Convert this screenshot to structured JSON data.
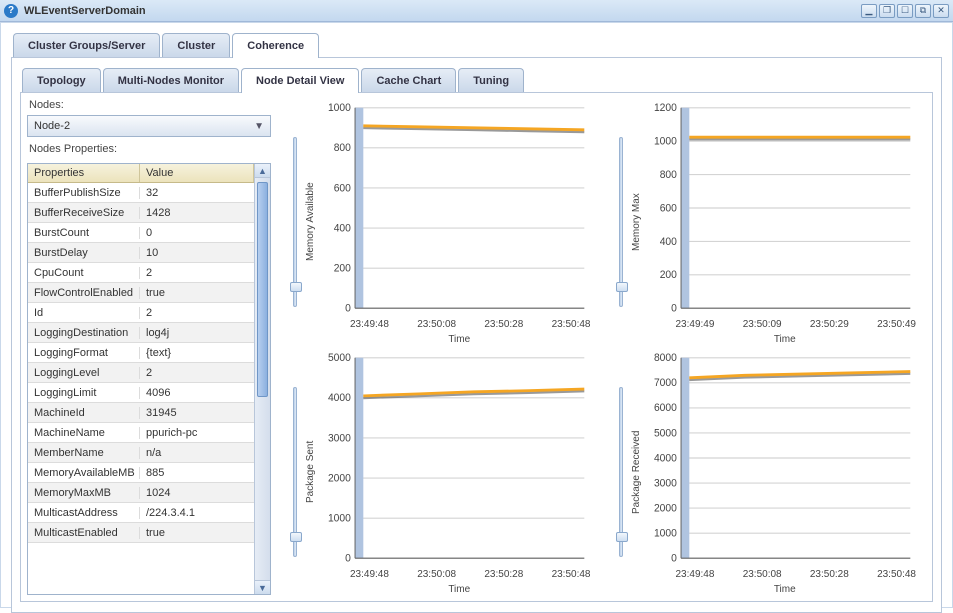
{
  "window": {
    "title": "WLEventServerDomain",
    "icon_bg": "#2b7ac8"
  },
  "tabs_primary": [
    {
      "label": "Cluster Groups/Server",
      "active": false
    },
    {
      "label": "Cluster",
      "active": false
    },
    {
      "label": "Coherence",
      "active": true
    }
  ],
  "tabs_secondary": [
    {
      "label": "Topology",
      "active": false
    },
    {
      "label": "Multi-Nodes Monitor",
      "active": false
    },
    {
      "label": "Node Detail View",
      "active": true
    },
    {
      "label": "Cache Chart",
      "active": false
    },
    {
      "label": "Tuning",
      "active": false
    }
  ],
  "left": {
    "nodes_label": "Nodes:",
    "selected_node": "Node-2",
    "properties_label": "Nodes Properties:",
    "table_headers": {
      "key": "Properties",
      "value": "Value"
    },
    "rows": [
      {
        "k": "BufferPublishSize",
        "v": "32"
      },
      {
        "k": "BufferReceiveSize",
        "v": "1428"
      },
      {
        "k": "BurstCount",
        "v": "0"
      },
      {
        "k": "BurstDelay",
        "v": "10"
      },
      {
        "k": "CpuCount",
        "v": "2"
      },
      {
        "k": "FlowControlEnabled",
        "v": "true"
      },
      {
        "k": "Id",
        "v": "2"
      },
      {
        "k": "LoggingDestination",
        "v": "log4j"
      },
      {
        "k": "LoggingFormat",
        "v": "{text}"
      },
      {
        "k": "LoggingLevel",
        "v": "2"
      },
      {
        "k": "LoggingLimit",
        "v": "4096"
      },
      {
        "k": "MachineId",
        "v": "31945"
      },
      {
        "k": "MachineName",
        "v": "ppurich-pc"
      },
      {
        "k": "MemberName",
        "v": "n/a"
      },
      {
        "k": "MemoryAvailableMB",
        "v": "885"
      },
      {
        "k": "MemoryMaxMB",
        "v": "1024"
      },
      {
        "k": "MulticastAddress",
        "v": "/224.3.4.1"
      },
      {
        "k": "MulticastEnabled",
        "v": "true"
      }
    ],
    "scrollbar": {
      "thumb_top_pct": 4,
      "thumb_height_pct": 50
    }
  },
  "charts": [
    {
      "ylabel": "Memory Available",
      "xlabel": "Time",
      "ymin": 0,
      "ymax": 1000,
      "ystep": 200,
      "xticks": [
        "23:49:48",
        "23:50:08",
        "23:50:28",
        "23:50:48"
      ],
      "series": [
        {
          "points": [
            [
              0,
              910
            ],
            [
              0.25,
              905
            ],
            [
              0.5,
              900
            ],
            [
              0.75,
              895
            ],
            [
              1,
              890
            ]
          ],
          "color": "#f5a623"
        }
      ],
      "slider_handle_pct": 90,
      "line_color": "#f5a623",
      "shadow_color": "#555555",
      "grid_color": "#d4d4d4",
      "plotbar_color": "#b0c4e0"
    },
    {
      "ylabel": "Memory Max",
      "xlabel": "Time",
      "ymin": 0,
      "ymax": 1200,
      "ystep": 200,
      "xticks": [
        "23:49:49",
        "23:50:09",
        "23:50:29",
        "23:50:49"
      ],
      "series": [
        {
          "points": [
            [
              0,
              1024
            ],
            [
              0.25,
              1024
            ],
            [
              0.5,
              1024
            ],
            [
              0.75,
              1024
            ],
            [
              1,
              1024
            ]
          ],
          "color": "#f5a623"
        }
      ],
      "slider_handle_pct": 90,
      "line_color": "#f5a623",
      "shadow_color": "#555555",
      "grid_color": "#d4d4d4",
      "plotbar_color": "#b0c4e0"
    },
    {
      "ylabel": "Package Sent",
      "xlabel": "Time",
      "ymin": 0,
      "ymax": 5000,
      "ystep": 1000,
      "xticks": [
        "23:49:48",
        "23:50:08",
        "23:50:28",
        "23:50:48"
      ],
      "series": [
        {
          "points": [
            [
              0,
              4050
            ],
            [
              0.25,
              4100
            ],
            [
              0.5,
              4150
            ],
            [
              0.75,
              4180
            ],
            [
              1,
              4220
            ]
          ],
          "color": "#f5a623"
        }
      ],
      "slider_handle_pct": 90,
      "line_color": "#f5a623",
      "shadow_color": "#555555",
      "grid_color": "#d4d4d4",
      "plotbar_color": "#b0c4e0"
    },
    {
      "ylabel": "Package Received",
      "xlabel": "Time",
      "ymin": 0,
      "ymax": 8000,
      "ystep": 1000,
      "xticks": [
        "23:49:48",
        "23:50:08",
        "23:50:28",
        "23:50:48"
      ],
      "series": [
        {
          "points": [
            [
              0,
              7200
            ],
            [
              0.25,
              7300
            ],
            [
              0.5,
              7350
            ],
            [
              0.75,
              7400
            ],
            [
              1,
              7450
            ]
          ],
          "color": "#f5a623"
        }
      ],
      "slider_handle_pct": 90,
      "line_color": "#f5a623",
      "shadow_color": "#555555",
      "grid_color": "#d4d4d4",
      "plotbar_color": "#b0c4e0"
    }
  ],
  "colors": {
    "tab_bg": "#c9d7e9",
    "panel_border": "#b8c6da",
    "header_bg": "#ece3bc"
  }
}
